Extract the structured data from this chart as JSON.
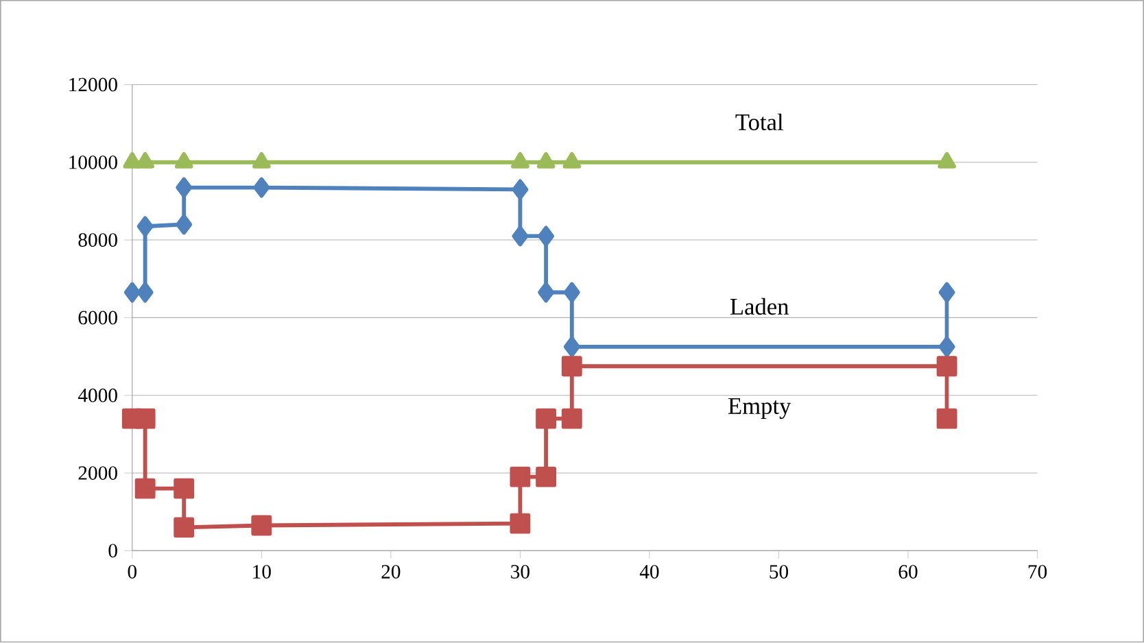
{
  "chart_data": {
    "type": "line",
    "xlim": [
      0,
      70
    ],
    "ylim": [
      0,
      12000
    ],
    "xticks": [
      0,
      10,
      20,
      30,
      40,
      50,
      60,
      70
    ],
    "yticks": [
      0,
      2000,
      4000,
      6000,
      8000,
      10000,
      12000
    ],
    "grid": "y",
    "legend": false,
    "series": [
      {
        "name": "Total",
        "color": "#9bbb59",
        "marker": "triangle",
        "x": [
          0,
          1,
          4,
          10,
          30,
          32,
          34,
          63
        ],
        "values": [
          10000,
          10000,
          10000,
          10000,
          10000,
          10000,
          10000,
          10000
        ]
      },
      {
        "name": "Laden",
        "color": "#4f81bd",
        "marker": "diamond",
        "x": [
          0,
          1,
          1,
          4,
          4,
          10,
          30,
          30,
          32,
          32,
          34,
          34,
          63,
          63
        ],
        "values": [
          6650,
          6650,
          8350,
          8400,
          9350,
          9350,
          9300,
          8100,
          8100,
          6650,
          6650,
          5250,
          5250,
          6650
        ]
      },
      {
        "name": "Empty",
        "color": "#c0504d",
        "marker": "square",
        "x": [
          0,
          1,
          1,
          4,
          4,
          10,
          30,
          30,
          32,
          32,
          34,
          34,
          63,
          63
        ],
        "values": [
          3400,
          3400,
          1600,
          1600,
          600,
          650,
          700,
          1900,
          1900,
          3400,
          3400,
          4750,
          4750,
          3400
        ]
      }
    ]
  }
}
